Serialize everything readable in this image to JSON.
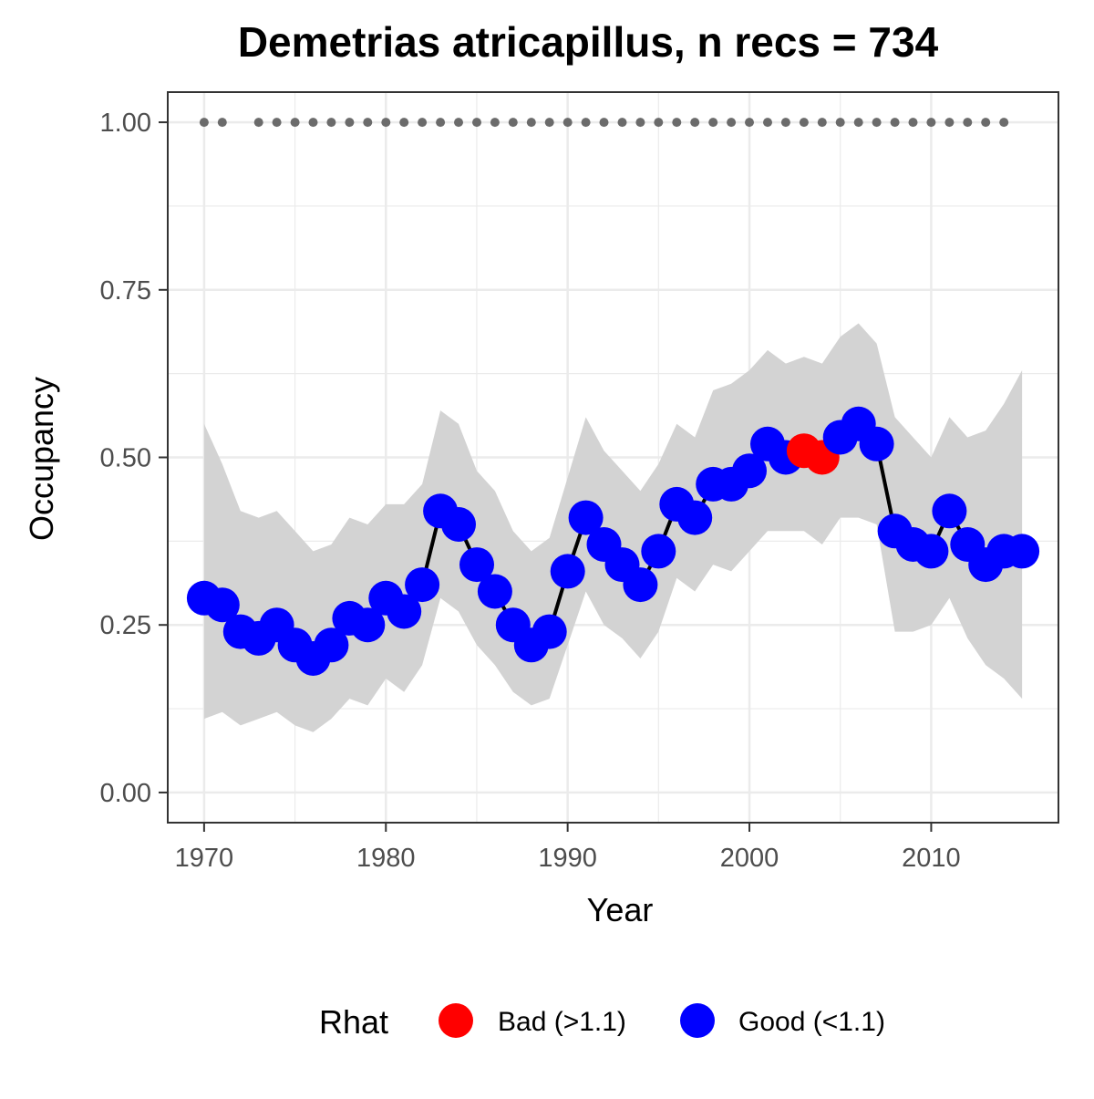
{
  "chart_data": {
    "type": "line",
    "title": "Demetrias atricapillus, n recs = 734",
    "xlabel": "Year",
    "ylabel": "Occupancy",
    "xlim": [
      1968,
      2017
    ],
    "ylim": [
      -0.045,
      1.045
    ],
    "x_ticks": [
      1970,
      1980,
      1990,
      2000,
      2010
    ],
    "x_tick_labels": [
      "1970",
      "1980",
      "1990",
      "2000",
      "2010"
    ],
    "y_ticks": [
      0,
      0.25,
      0.5,
      0.75,
      1.0
    ],
    "y_tick_labels": [
      "0.00",
      "0.25",
      "0.50",
      "0.75",
      "1.00"
    ],
    "grid": true,
    "legend_position": "bottom",
    "legend": {
      "title": "Rhat",
      "entries": [
        {
          "label": "Bad (>1.1)",
          "color": "#ff0000"
        },
        {
          "label": "Good (<1.1)",
          "color": "#0000ff"
        }
      ]
    },
    "colors": {
      "ribbon": "#d3d3d3",
      "line": "#000000",
      "bad": "#ff0000",
      "good": "#0000ff",
      "record_dots": "#6b6b6b"
    },
    "occupancy": [
      {
        "year": 1970,
        "mean": 0.29,
        "lower": 0.11,
        "upper": 0.55,
        "rhat": "good"
      },
      {
        "year": 1971,
        "mean": 0.28,
        "lower": 0.12,
        "upper": 0.49,
        "rhat": "good"
      },
      {
        "year": 1972,
        "mean": 0.24,
        "lower": 0.1,
        "upper": 0.42,
        "rhat": "good"
      },
      {
        "year": 1973,
        "mean": 0.23,
        "lower": 0.11,
        "upper": 0.41,
        "rhat": "good"
      },
      {
        "year": 1974,
        "mean": 0.25,
        "lower": 0.12,
        "upper": 0.42,
        "rhat": "good"
      },
      {
        "year": 1975,
        "mean": 0.22,
        "lower": 0.1,
        "upper": 0.39,
        "rhat": "good"
      },
      {
        "year": 1976,
        "mean": 0.2,
        "lower": 0.09,
        "upper": 0.36,
        "rhat": "good"
      },
      {
        "year": 1977,
        "mean": 0.22,
        "lower": 0.11,
        "upper": 0.37,
        "rhat": "good"
      },
      {
        "year": 1978,
        "mean": 0.26,
        "lower": 0.14,
        "upper": 0.41,
        "rhat": "good"
      },
      {
        "year": 1979,
        "mean": 0.25,
        "lower": 0.13,
        "upper": 0.4,
        "rhat": "good"
      },
      {
        "year": 1980,
        "mean": 0.29,
        "lower": 0.17,
        "upper": 0.43,
        "rhat": "good"
      },
      {
        "year": 1981,
        "mean": 0.27,
        "lower": 0.15,
        "upper": 0.43,
        "rhat": "good"
      },
      {
        "year": 1982,
        "mean": 0.31,
        "lower": 0.19,
        "upper": 0.46,
        "rhat": "good"
      },
      {
        "year": 1983,
        "mean": 0.42,
        "lower": 0.29,
        "upper": 0.57,
        "rhat": "good"
      },
      {
        "year": 1984,
        "mean": 0.4,
        "lower": 0.27,
        "upper": 0.55,
        "rhat": "good"
      },
      {
        "year": 1985,
        "mean": 0.34,
        "lower": 0.22,
        "upper": 0.48,
        "rhat": "good"
      },
      {
        "year": 1986,
        "mean": 0.3,
        "lower": 0.19,
        "upper": 0.45,
        "rhat": "good"
      },
      {
        "year": 1987,
        "mean": 0.25,
        "lower": 0.15,
        "upper": 0.39,
        "rhat": "good"
      },
      {
        "year": 1988,
        "mean": 0.22,
        "lower": 0.13,
        "upper": 0.36,
        "rhat": "good"
      },
      {
        "year": 1989,
        "mean": 0.24,
        "lower": 0.14,
        "upper": 0.38,
        "rhat": "good"
      },
      {
        "year": 1990,
        "mean": 0.33,
        "lower": 0.22,
        "upper": 0.47,
        "rhat": "good"
      },
      {
        "year": 1991,
        "mean": 0.41,
        "lower": 0.3,
        "upper": 0.56,
        "rhat": "good"
      },
      {
        "year": 1992,
        "mean": 0.37,
        "lower": 0.25,
        "upper": 0.51,
        "rhat": "good"
      },
      {
        "year": 1993,
        "mean": 0.34,
        "lower": 0.23,
        "upper": 0.48,
        "rhat": "good"
      },
      {
        "year": 1994,
        "mean": 0.31,
        "lower": 0.2,
        "upper": 0.45,
        "rhat": "good"
      },
      {
        "year": 1995,
        "mean": 0.36,
        "lower": 0.24,
        "upper": 0.49,
        "rhat": "good"
      },
      {
        "year": 1996,
        "mean": 0.43,
        "lower": 0.32,
        "upper": 0.55,
        "rhat": "good"
      },
      {
        "year": 1997,
        "mean": 0.41,
        "lower": 0.3,
        "upper": 0.53,
        "rhat": "good"
      },
      {
        "year": 1998,
        "mean": 0.46,
        "lower": 0.34,
        "upper": 0.6,
        "rhat": "good"
      },
      {
        "year": 1999,
        "mean": 0.46,
        "lower": 0.33,
        "upper": 0.61,
        "rhat": "good"
      },
      {
        "year": 2000,
        "mean": 0.48,
        "lower": 0.36,
        "upper": 0.63,
        "rhat": "good"
      },
      {
        "year": 2001,
        "mean": 0.52,
        "lower": 0.39,
        "upper": 0.66,
        "rhat": "good"
      },
      {
        "year": 2002,
        "mean": 0.5,
        "lower": 0.39,
        "upper": 0.64,
        "rhat": "good"
      },
      {
        "year": 2003,
        "mean": 0.51,
        "lower": 0.39,
        "upper": 0.65,
        "rhat": "bad"
      },
      {
        "year": 2004,
        "mean": 0.5,
        "lower": 0.37,
        "upper": 0.64,
        "rhat": "bad"
      },
      {
        "year": 2005,
        "mean": 0.53,
        "lower": 0.41,
        "upper": 0.68,
        "rhat": "good"
      },
      {
        "year": 2006,
        "mean": 0.55,
        "lower": 0.41,
        "upper": 0.7,
        "rhat": "good"
      },
      {
        "year": 2007,
        "mean": 0.52,
        "lower": 0.4,
        "upper": 0.67,
        "rhat": "good"
      },
      {
        "year": 2008,
        "mean": 0.39,
        "lower": 0.24,
        "upper": 0.56,
        "rhat": "good"
      },
      {
        "year": 2009,
        "mean": 0.37,
        "lower": 0.24,
        "upper": 0.53,
        "rhat": "good"
      },
      {
        "year": 2010,
        "mean": 0.36,
        "lower": 0.25,
        "upper": 0.5,
        "rhat": "good"
      },
      {
        "year": 2011,
        "mean": 0.42,
        "lower": 0.29,
        "upper": 0.56,
        "rhat": "good"
      },
      {
        "year": 2012,
        "mean": 0.37,
        "lower": 0.23,
        "upper": 0.53,
        "rhat": "good"
      },
      {
        "year": 2013,
        "mean": 0.34,
        "lower": 0.19,
        "upper": 0.54,
        "rhat": "good"
      },
      {
        "year": 2014,
        "mean": 0.36,
        "lower": 0.17,
        "upper": 0.58,
        "rhat": "good"
      },
      {
        "year": 2015,
        "mean": 0.36,
        "lower": 0.14,
        "upper": 0.63,
        "rhat": "good"
      }
    ],
    "record_years": [
      1970,
      1971,
      1973,
      1974,
      1975,
      1976,
      1977,
      1978,
      1979,
      1980,
      1981,
      1982,
      1983,
      1984,
      1985,
      1986,
      1987,
      1988,
      1989,
      1990,
      1991,
      1992,
      1993,
      1994,
      1995,
      1996,
      1997,
      1998,
      1999,
      2000,
      2001,
      2002,
      2003,
      2004,
      2005,
      2006,
      2007,
      2008,
      2009,
      2010,
      2011,
      2012,
      2013,
      2014
    ],
    "record_value": 1.0
  }
}
